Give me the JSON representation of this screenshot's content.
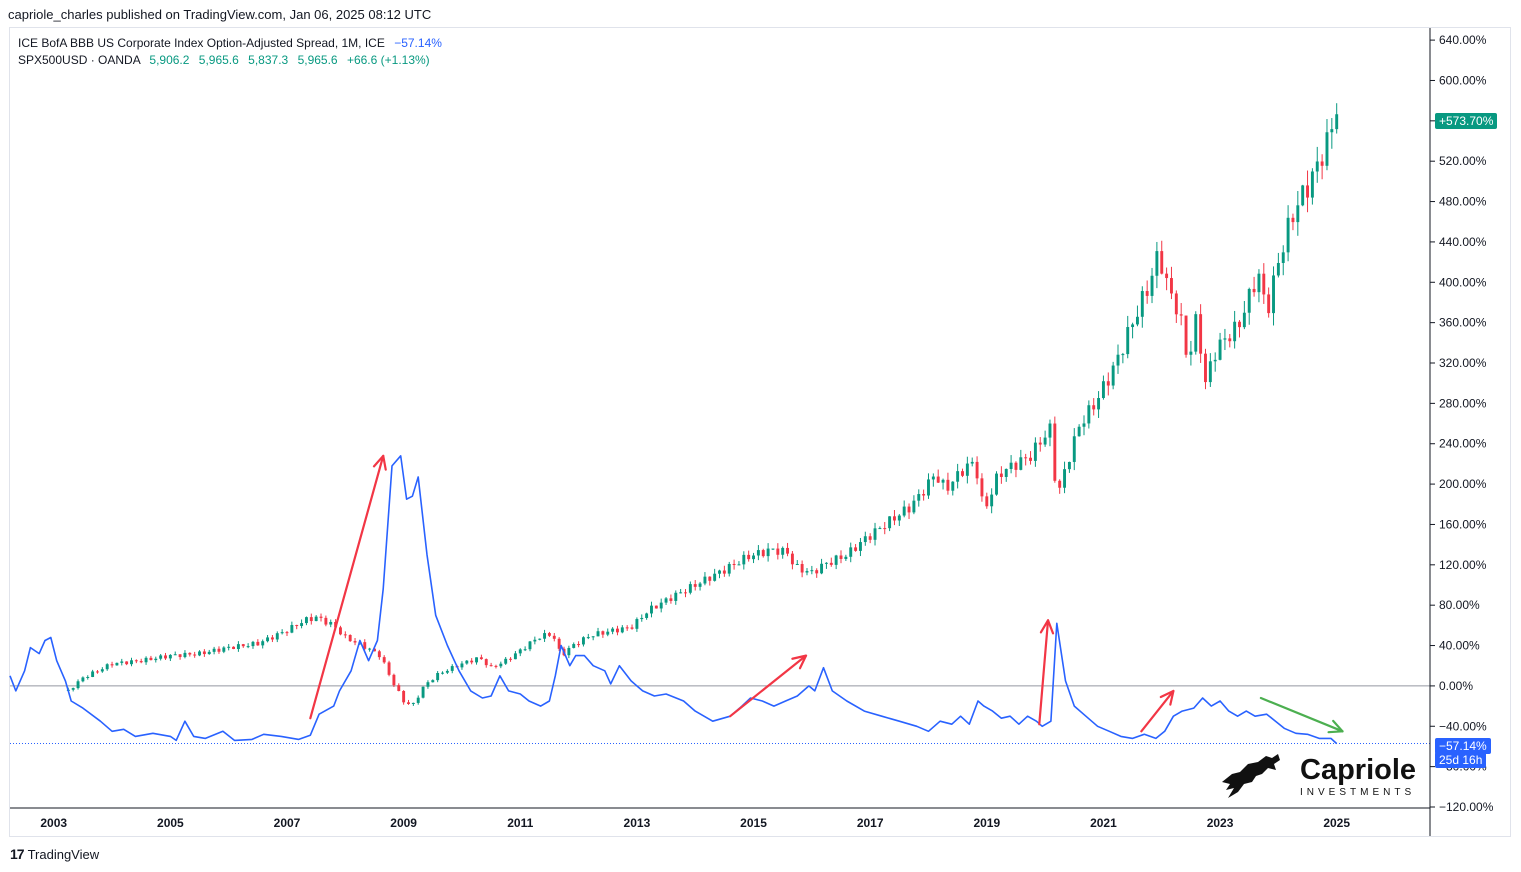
{
  "header": {
    "published_line": "capriole_charles published on TradingView.com, Jan 06, 2025 08:12 UTC"
  },
  "legend": {
    "series1": {
      "name": "ICE BofA BBB US Corporate Index Option-Adjusted Spread, 1M, ICE",
      "value": "−57.14%"
    },
    "series2": {
      "name": "SPX500USD · OANDA",
      "o": "5,906.2",
      "h": "5,965.6",
      "l": "5,837.3",
      "c": "5,965.6",
      "chg": "+66.6 (+1.13%)"
    }
  },
  "badges": {
    "spx_last": "+573.70%",
    "spread_last": "−57.14%",
    "countdown": "25d 16h"
  },
  "brand": {
    "name": "Capriole",
    "sub": "INVESTMENTS"
  },
  "footer": {
    "label": "TradingView"
  },
  "colors": {
    "up": "#089981",
    "down": "#f23645",
    "spread": "#2962ff",
    "arrow_red": "#f23645",
    "arrow_green": "#4caf50"
  },
  "chart_data": {
    "type": "line",
    "y_axis": {
      "unit": "percent change",
      "ticks": [
        640,
        600,
        560,
        520,
        480,
        440,
        400,
        360,
        320,
        280,
        240,
        200,
        160,
        120,
        80,
        40,
        0,
        -40,
        -80,
        -120
      ],
      "tick_labels": [
        "640.00%",
        "600.00%",
        "560.00%",
        "520.00%",
        "480.00%",
        "440.00%",
        "400.00%",
        "360.00%",
        "320.00%",
        "280.00%",
        "240.00%",
        "200.00%",
        "160.00%",
        "120.00%",
        "80.00%",
        "40.00%",
        "0.00%",
        "−40.00%",
        "−80.00%",
        "−120.00%"
      ],
      "range": [
        -121,
        652
      ]
    },
    "x_axis": {
      "tick_labels": [
        "2003",
        "2005",
        "2007",
        "2009",
        "2011",
        "2013",
        "2015",
        "2017",
        "2019",
        "2021",
        "2023",
        "2025"
      ],
      "tick_years": [
        2003,
        2005,
        2007,
        2009,
        2011,
        2013,
        2015,
        2017,
        2019,
        2021,
        2023,
        2025
      ],
      "range": [
        2002.25,
        2026.6
      ]
    },
    "grid": false,
    "series": [
      {
        "name": "ICE BofA BBB US Corporate Index Option-Adjusted Spread",
        "style": "line",
        "points": [
          [
            2002.25,
            10
          ],
          [
            2002.35,
            -5
          ],
          [
            2002.5,
            15
          ],
          [
            2002.6,
            38
          ],
          [
            2002.75,
            32
          ],
          [
            2002.85,
            45
          ],
          [
            2002.95,
            48
          ],
          [
            2003.05,
            25
          ],
          [
            2003.2,
            5
          ],
          [
            2003.3,
            -15
          ],
          [
            2003.5,
            -22
          ],
          [
            2003.8,
            -35
          ],
          [
            2004.0,
            -45
          ],
          [
            2004.2,
            -43
          ],
          [
            2004.4,
            -50
          ],
          [
            2004.7,
            -47
          ],
          [
            2005.0,
            -50
          ],
          [
            2005.1,
            -54
          ],
          [
            2005.25,
            -35
          ],
          [
            2005.4,
            -50
          ],
          [
            2005.6,
            -52
          ],
          [
            2005.9,
            -45
          ],
          [
            2006.1,
            -54
          ],
          [
            2006.4,
            -53
          ],
          [
            2006.6,
            -48
          ],
          [
            2006.9,
            -50
          ],
          [
            2007.2,
            -53
          ],
          [
            2007.4,
            -49
          ],
          [
            2007.55,
            -28
          ],
          [
            2007.8,
            -20
          ],
          [
            2007.9,
            -5
          ],
          [
            2008.1,
            15
          ],
          [
            2008.25,
            45
          ],
          [
            2008.4,
            25
          ],
          [
            2008.55,
            45
          ],
          [
            2008.65,
            96
          ],
          [
            2008.8,
            218
          ],
          [
            2008.95,
            228
          ],
          [
            2009.05,
            185
          ],
          [
            2009.15,
            188
          ],
          [
            2009.25,
            207
          ],
          [
            2009.4,
            130
          ],
          [
            2009.55,
            70
          ],
          [
            2009.75,
            40
          ],
          [
            2009.95,
            15
          ],
          [
            2010.15,
            -5
          ],
          [
            2010.35,
            -12
          ],
          [
            2010.5,
            -10
          ],
          [
            2010.65,
            10
          ],
          [
            2010.8,
            -5
          ],
          [
            2011.0,
            -8
          ],
          [
            2011.15,
            -15
          ],
          [
            2011.35,
            -20
          ],
          [
            2011.5,
            -15
          ],
          [
            2011.6,
            10
          ],
          [
            2011.7,
            40
          ],
          [
            2011.85,
            20
          ],
          [
            2011.95,
            30
          ],
          [
            2012.1,
            30
          ],
          [
            2012.25,
            20
          ],
          [
            2012.45,
            15
          ],
          [
            2012.55,
            2
          ],
          [
            2012.7,
            20
          ],
          [
            2012.9,
            5
          ],
          [
            2013.1,
            -5
          ],
          [
            2013.3,
            -10
          ],
          [
            2013.5,
            -8
          ],
          [
            2013.8,
            -15
          ],
          [
            2014.0,
            -25
          ],
          [
            2014.3,
            -35
          ],
          [
            2014.6,
            -30
          ],
          [
            2014.8,
            -20
          ],
          [
            2014.95,
            -12
          ],
          [
            2015.15,
            -15
          ],
          [
            2015.35,
            -20
          ],
          [
            2015.55,
            -15
          ],
          [
            2015.75,
            -10
          ],
          [
            2015.95,
            0
          ],
          [
            2016.05,
            -5
          ],
          [
            2016.2,
            18
          ],
          [
            2016.35,
            -5
          ],
          [
            2016.6,
            -15
          ],
          [
            2016.9,
            -25
          ],
          [
            2017.2,
            -30
          ],
          [
            2017.5,
            -35
          ],
          [
            2017.8,
            -40
          ],
          [
            2018.0,
            -45
          ],
          [
            2018.2,
            -35
          ],
          [
            2018.4,
            -38
          ],
          [
            2018.55,
            -30
          ],
          [
            2018.7,
            -38
          ],
          [
            2018.85,
            -15
          ],
          [
            2018.95,
            -20
          ],
          [
            2019.1,
            -25
          ],
          [
            2019.25,
            -32
          ],
          [
            2019.4,
            -30
          ],
          [
            2019.55,
            -38
          ],
          [
            2019.7,
            -30
          ],
          [
            2019.85,
            -35
          ],
          [
            2019.95,
            -40
          ],
          [
            2020.1,
            -35
          ],
          [
            2020.2,
            62
          ],
          [
            2020.35,
            5
          ],
          [
            2020.5,
            -20
          ],
          [
            2020.7,
            -30
          ],
          [
            2020.9,
            -40
          ],
          [
            2021.1,
            -45
          ],
          [
            2021.3,
            -50
          ],
          [
            2021.5,
            -52
          ],
          [
            2021.7,
            -48
          ],
          [
            2021.9,
            -52
          ],
          [
            2022.05,
            -45
          ],
          [
            2022.2,
            -30
          ],
          [
            2022.35,
            -25
          ],
          [
            2022.55,
            -22
          ],
          [
            2022.7,
            -12
          ],
          [
            2022.85,
            -20
          ],
          [
            2023.0,
            -15
          ],
          [
            2023.15,
            -25
          ],
          [
            2023.3,
            -30
          ],
          [
            2023.45,
            -25
          ],
          [
            2023.6,
            -30
          ],
          [
            2023.8,
            -28
          ],
          [
            2023.95,
            -35
          ],
          [
            2024.1,
            -42
          ],
          [
            2024.3,
            -47
          ],
          [
            2024.5,
            -48
          ],
          [
            2024.7,
            -52
          ],
          [
            2024.9,
            -52
          ],
          [
            2025.0,
            -57.14
          ]
        ]
      },
      {
        "name": "SPX500USD · OANDA",
        "style": "candles",
        "anchors": [
          [
            2003.25,
            -5
          ],
          [
            2003.5,
            8
          ],
          [
            2004.0,
            22
          ],
          [
            2004.5,
            25
          ],
          [
            2005.0,
            30
          ],
          [
            2005.5,
            32
          ],
          [
            2006.0,
            38
          ],
          [
            2006.5,
            42
          ],
          [
            2007.0,
            55
          ],
          [
            2007.3,
            65
          ],
          [
            2007.5,
            68
          ],
          [
            2007.8,
            60
          ],
          [
            2008.0,
            48
          ],
          [
            2008.3,
            40
          ],
          [
            2008.6,
            30
          ],
          [
            2008.8,
            5
          ],
          [
            2009.0,
            -15
          ],
          [
            2009.15,
            -20
          ],
          [
            2009.35,
            0
          ],
          [
            2009.6,
            12
          ],
          [
            2010.0,
            22
          ],
          [
            2010.3,
            28
          ],
          [
            2010.5,
            18
          ],
          [
            2010.75,
            25
          ],
          [
            2011.0,
            35
          ],
          [
            2011.3,
            48
          ],
          [
            2011.55,
            52
          ],
          [
            2011.7,
            30
          ],
          [
            2011.9,
            40
          ],
          [
            2012.2,
            50
          ],
          [
            2012.6,
            55
          ],
          [
            2012.9,
            58
          ],
          [
            2013.2,
            75
          ],
          [
            2013.6,
            88
          ],
          [
            2014.0,
            100
          ],
          [
            2014.5,
            115
          ],
          [
            2014.9,
            128
          ],
          [
            2015.3,
            135
          ],
          [
            2015.6,
            132
          ],
          [
            2015.7,
            118
          ],
          [
            2016.0,
            112
          ],
          [
            2016.2,
            120
          ],
          [
            2016.6,
            130
          ],
          [
            2016.9,
            145
          ],
          [
            2017.3,
            162
          ],
          [
            2017.7,
            178
          ],
          [
            2018.0,
            200
          ],
          [
            2018.1,
            210
          ],
          [
            2018.3,
            195
          ],
          [
            2018.6,
            215
          ],
          [
            2018.8,
            222
          ],
          [
            2018.95,
            172
          ],
          [
            2019.2,
            210
          ],
          [
            2019.5,
            220
          ],
          [
            2019.75,
            228
          ],
          [
            2019.95,
            245
          ],
          [
            2020.1,
            255
          ],
          [
            2020.2,
            185
          ],
          [
            2020.4,
            225
          ],
          [
            2020.6,
            260
          ],
          [
            2020.8,
            275
          ],
          [
            2020.95,
            290
          ],
          [
            2021.2,
            318
          ],
          [
            2021.5,
            360
          ],
          [
            2021.8,
            400
          ],
          [
            2021.95,
            430
          ],
          [
            2022.1,
            395
          ],
          [
            2022.3,
            370
          ],
          [
            2022.45,
            320
          ],
          [
            2022.6,
            365
          ],
          [
            2022.75,
            300
          ],
          [
            2022.9,
            330
          ],
          [
            2023.1,
            345
          ],
          [
            2023.3,
            355
          ],
          [
            2023.5,
            385
          ],
          [
            2023.65,
            410
          ],
          [
            2023.8,
            370
          ],
          [
            2024.0,
            420
          ],
          [
            2024.2,
            460
          ],
          [
            2024.35,
            480
          ],
          [
            2024.55,
            500
          ],
          [
            2024.7,
            520
          ],
          [
            2024.85,
            540
          ],
          [
            2025.0,
            573.7
          ]
        ]
      }
    ],
    "annotations": [
      {
        "type": "arrow",
        "color": "red",
        "from": [
          2007.4,
          -32
        ],
        "to": [
          2008.65,
          228
        ]
      },
      {
        "type": "arrow",
        "color": "red",
        "from": [
          2014.6,
          -30
        ],
        "to": [
          2015.9,
          30
        ]
      },
      {
        "type": "arrow",
        "color": "red",
        "from": [
          2019.9,
          -38
        ],
        "to": [
          2020.05,
          65
        ]
      },
      {
        "type": "arrow",
        "color": "red",
        "from": [
          2021.65,
          -45
        ],
        "to": [
          2022.2,
          -5
        ]
      },
      {
        "type": "arrow",
        "color": "green",
        "from": [
          2023.7,
          -12
        ],
        "to": [
          2025.1,
          -45
        ]
      }
    ],
    "horizontal_lines": [
      {
        "y": 0,
        "style": "solid"
      },
      {
        "y": -57.14,
        "style": "dotted"
      }
    ]
  }
}
